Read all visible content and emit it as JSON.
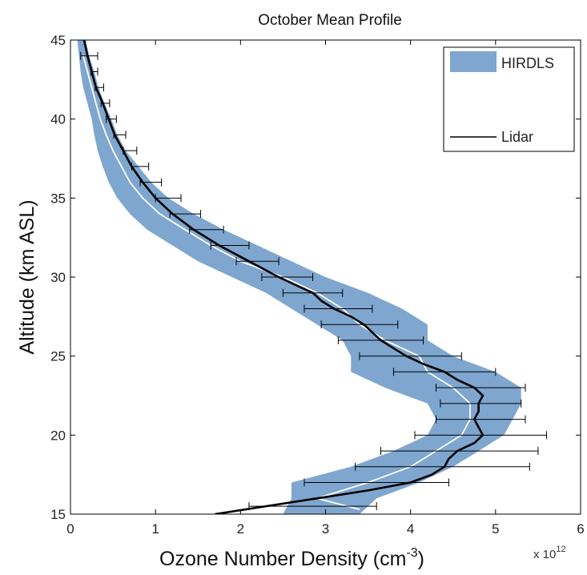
{
  "chart_data": {
    "type": "line",
    "title": "October Mean Profile",
    "xlabel": "Ozone Number Density (cm",
    "xlabel_superscript": "-3",
    "xlabel_close": ")",
    "x_multiplier_base": "x 10",
    "x_multiplier_exp": "12",
    "ylabel": "Altitude (km ASL)",
    "xlim": [
      0,
      6
    ],
    "ylim": [
      15,
      45
    ],
    "x_ticks": [
      "0",
      "1",
      "2",
      "3",
      "4",
      "5",
      "6"
    ],
    "y_ticks": [
      "15",
      "20",
      "25",
      "30",
      "35",
      "40",
      "45"
    ],
    "grid": false,
    "legend_position": "top-right",
    "colors": {
      "band": "#7ea6cf",
      "lidar": "#000000",
      "hirdls_mean": "#ffffff",
      "errorbar": "#000000"
    },
    "series": [
      {
        "name": "HIRDLS",
        "kind": "band",
        "y": [
          15,
          16,
          17,
          18,
          19,
          20,
          21,
          22,
          23,
          24,
          25,
          26,
          27,
          28,
          29,
          30,
          31,
          32,
          33,
          34,
          35,
          36,
          37,
          38,
          39,
          40,
          41,
          42,
          43,
          44,
          45
        ],
        "lower": [
          2.5,
          2.6,
          2.6,
          3.3,
          3.8,
          4.2,
          4.3,
          4.2,
          3.7,
          3.3,
          3.3,
          3.2,
          2.9,
          2.6,
          2.3,
          1.9,
          1.5,
          1.2,
          0.9,
          0.7,
          0.55,
          0.45,
          0.38,
          0.32,
          0.28,
          0.25,
          0.2,
          0.15,
          0.12,
          0.1,
          0.08
        ],
        "upper": [
          3.4,
          3.6,
          4.1,
          4.5,
          4.8,
          5.1,
          5.2,
          5.3,
          5.3,
          5.0,
          4.5,
          4.2,
          4.2,
          3.9,
          3.5,
          3.0,
          2.6,
          2.2,
          1.8,
          1.45,
          1.15,
          0.95,
          0.8,
          0.65,
          0.55,
          0.48,
          0.4,
          0.33,
          0.28,
          0.22,
          0.18
        ]
      },
      {
        "name": "",
        "kind": "line",
        "y": [
          15.3,
          16,
          17,
          18,
          19,
          20,
          21,
          22,
          23,
          24,
          25,
          26,
          27,
          28,
          29,
          30,
          31,
          32,
          33,
          34,
          35,
          36,
          37,
          38,
          39,
          40,
          41,
          42,
          43,
          44
        ],
        "x": [
          3.4,
          2.9,
          3.5,
          4.0,
          4.3,
          4.6,
          4.7,
          4.7,
          4.5,
          4.2,
          4.1,
          3.7,
          3.4,
          3.2,
          2.9,
          2.5,
          2.0,
          1.65,
          1.35,
          1.05,
          0.85,
          0.7,
          0.6,
          0.5,
          0.42,
          0.35,
          0.3,
          0.25,
          0.2,
          0.15
        ]
      },
      {
        "name": "Lidar",
        "kind": "line",
        "y": [
          15,
          15.5,
          16,
          16.5,
          17,
          17.5,
          18,
          18.5,
          19,
          19.5,
          20,
          20.5,
          21,
          21.5,
          22,
          22.5,
          23,
          23.5,
          24,
          24.5,
          25,
          25.5,
          26,
          26.5,
          27,
          27.5,
          28,
          28.5,
          29,
          29.5,
          30,
          31,
          32,
          33,
          34,
          35,
          36,
          37,
          38,
          39,
          40,
          41,
          42,
          43,
          44,
          45
        ],
        "x": [
          1.7,
          2.3,
          2.9,
          3.5,
          4.0,
          4.25,
          4.4,
          4.45,
          4.55,
          4.75,
          4.85,
          4.8,
          4.75,
          4.8,
          4.8,
          4.85,
          4.75,
          4.55,
          4.4,
          4.15,
          3.95,
          3.8,
          3.65,
          3.55,
          3.45,
          3.3,
          3.1,
          2.95,
          2.85,
          2.65,
          2.45,
          2.1,
          1.75,
          1.45,
          1.2,
          1.0,
          0.85,
          0.72,
          0.62,
          0.52,
          0.45,
          0.38,
          0.3,
          0.25,
          0.2,
          0.16
        ]
      }
    ],
    "error_bars": [
      {
        "y": 15.5,
        "x": 2.9,
        "minus": 0.8,
        "plus": 0.7
      },
      {
        "y": 17.0,
        "x": 3.55,
        "minus": 0.8,
        "plus": 0.9
      },
      {
        "y": 18.0,
        "x": 4.4,
        "minus": 1.05,
        "plus": 1.0
      },
      {
        "y": 19.0,
        "x": 4.55,
        "minus": 0.9,
        "plus": 0.95
      },
      {
        "y": 20.0,
        "x": 4.85,
        "minus": 0.8,
        "plus": 0.75
      },
      {
        "y": 21.0,
        "x": 4.8,
        "minus": 0.5,
        "plus": 0.55
      },
      {
        "y": 22.0,
        "x": 4.85,
        "minus": 0.5,
        "plus": 0.45
      },
      {
        "y": 23.0,
        "x": 4.8,
        "minus": 0.5,
        "plus": 0.55
      },
      {
        "y": 24.0,
        "x": 4.4,
        "minus": 0.6,
        "plus": 0.6
      },
      {
        "y": 25.0,
        "x": 3.95,
        "minus": 0.55,
        "plus": 0.65
      },
      {
        "y": 26.0,
        "x": 3.65,
        "minus": 0.5,
        "plus": 0.5
      },
      {
        "y": 27.0,
        "x": 3.4,
        "minus": 0.45,
        "plus": 0.45
      },
      {
        "y": 28.0,
        "x": 3.15,
        "minus": 0.4,
        "plus": 0.4
      },
      {
        "y": 29.0,
        "x": 2.85,
        "minus": 0.35,
        "plus": 0.35
      },
      {
        "y": 30.0,
        "x": 2.55,
        "minus": 0.3,
        "plus": 0.3
      },
      {
        "y": 31.0,
        "x": 2.2,
        "minus": 0.25,
        "plus": 0.25
      },
      {
        "y": 32.0,
        "x": 1.85,
        "minus": 0.2,
        "plus": 0.25
      },
      {
        "y": 33.0,
        "x": 1.6,
        "minus": 0.2,
        "plus": 0.2
      },
      {
        "y": 34.0,
        "x": 1.35,
        "minus": 0.18,
        "plus": 0.18
      },
      {
        "y": 35.0,
        "x": 1.15,
        "minus": 0.15,
        "plus": 0.15
      },
      {
        "y": 36.0,
        "x": 0.95,
        "minus": 0.13,
        "plus": 0.12
      },
      {
        "y": 37.0,
        "x": 0.82,
        "minus": 0.1,
        "plus": 0.1
      },
      {
        "y": 38.0,
        "x": 0.7,
        "minus": 0.08,
        "plus": 0.08
      },
      {
        "y": 39.0,
        "x": 0.58,
        "minus": 0.07,
        "plus": 0.07
      },
      {
        "y": 40.0,
        "x": 0.48,
        "minus": 0.06,
        "plus": 0.06
      },
      {
        "y": 41.0,
        "x": 0.41,
        "minus": 0.05,
        "plus": 0.05
      },
      {
        "y": 42.0,
        "x": 0.34,
        "minus": 0.05,
        "plus": 0.05
      },
      {
        "y": 43.0,
        "x": 0.28,
        "minus": 0.04,
        "plus": 0.04
      },
      {
        "y": 44.0,
        "x": 0.22,
        "minus": 0.1,
        "plus": 0.1
      }
    ]
  }
}
